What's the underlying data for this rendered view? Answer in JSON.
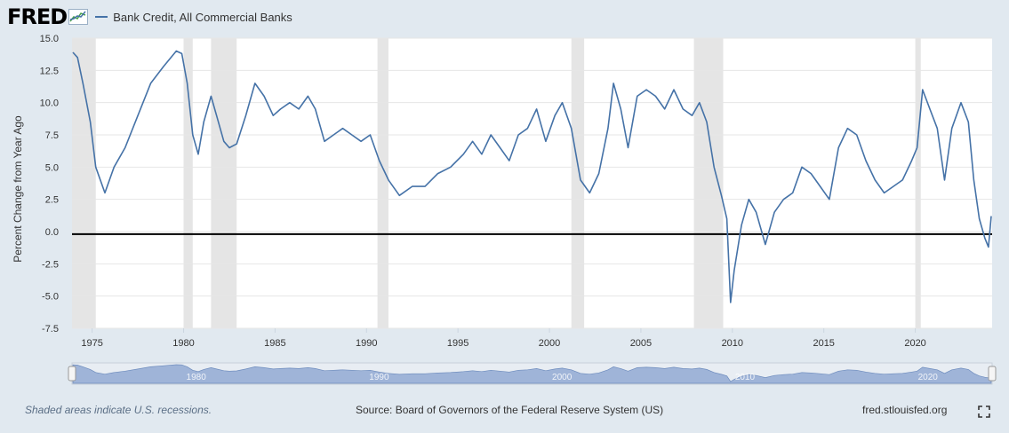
{
  "header": {
    "logo_text": "FRED",
    "logo_icon": "fred-chart-icon"
  },
  "footer": {
    "note": "Shaded areas indicate U.S. recessions.",
    "source": "Source: Board of Governors of the Federal Reserve System (US)",
    "site": "fred.stlouisfed.org",
    "fullscreen_icon": "fullscreen-icon"
  },
  "chart_data": {
    "type": "line",
    "title": "",
    "legend": "top-left",
    "grid": true,
    "ylabel": "Percent Change from Year Ago",
    "xlabel": "",
    "ylim": [
      -7.5,
      15.0
    ],
    "xlim": [
      1973.9,
      2024.2
    ],
    "yticks": [
      "15.0",
      "12.5",
      "10.0",
      "7.5",
      "5.0",
      "2.5",
      "0.0",
      "-2.5",
      "-5.0",
      "-7.5"
    ],
    "yticks_values": [
      15.0,
      12.5,
      10.0,
      7.5,
      5.0,
      2.5,
      0.0,
      -2.5,
      -5.0,
      -7.5
    ],
    "xticks": [
      "1975",
      "1980",
      "1985",
      "1990",
      "1995",
      "2000",
      "2005",
      "2010",
      "2015",
      "2020"
    ],
    "xticks_values": [
      1975,
      1980,
      1985,
      1990,
      1995,
      2000,
      2005,
      2010,
      2015,
      2020
    ],
    "zero_line": -0.2,
    "colors": {
      "series": "#4572a7",
      "recession": "#e5e5e5",
      "navigator": "#9fb4d8"
    },
    "recessions": [
      [
        1973.9,
        1975.2
      ],
      [
        1980.0,
        1980.5
      ],
      [
        1981.5,
        1982.9
      ],
      [
        1990.6,
        1991.2
      ],
      [
        2001.2,
        2001.9
      ],
      [
        2007.9,
        2009.5
      ],
      [
        2020.0,
        2020.3
      ]
    ],
    "navigator_labels": [
      "1980",
      "1990",
      "2000",
      "2010",
      "2020"
    ],
    "navigator_labels_values": [
      1980,
      1990,
      2000,
      2010,
      2020
    ],
    "series": [
      {
        "name": "Bank Credit, All Commercial Banks",
        "x": [
          1973.95,
          1974.2,
          1974.5,
          1974.9,
          1975.2,
          1975.7,
          1976.2,
          1976.8,
          1977.5,
          1978.2,
          1978.9,
          1979.6,
          1979.9,
          1980.2,
          1980.5,
          1980.8,
          1981.1,
          1981.5,
          1981.8,
          1982.2,
          1982.5,
          1982.9,
          1983.4,
          1983.9,
          1984.4,
          1984.9,
          1985.3,
          1985.8,
          1986.3,
          1986.8,
          1987.2,
          1987.7,
          1988.2,
          1988.7,
          1989.2,
          1989.7,
          1990.2,
          1990.7,
          1991.2,
          1991.8,
          1992.5,
          1993.2,
          1993.9,
          1994.6,
          1995.3,
          1995.8,
          1996.3,
          1996.8,
          1997.3,
          1997.8,
          1998.3,
          1998.8,
          1999.3,
          1999.8,
          2000.3,
          2000.7,
          2001.2,
          2001.7,
          2002.2,
          2002.7,
          2003.2,
          2003.5,
          2003.9,
          2004.3,
          2004.8,
          2005.3,
          2005.8,
          2006.3,
          2006.8,
          2007.3,
          2007.8,
          2008.2,
          2008.6,
          2009.0,
          2009.4,
          2009.7,
          2009.9,
          2010.1,
          2010.5,
          2010.9,
          2011.3,
          2011.8,
          2012.3,
          2012.8,
          2013.3,
          2013.8,
          2014.3,
          2014.8,
          2015.3,
          2015.8,
          2016.3,
          2016.8,
          2017.3,
          2017.8,
          2018.3,
          2018.8,
          2019.3,
          2019.8,
          2020.1,
          2020.4,
          2020.8,
          2021.2,
          2021.6,
          2022.0,
          2022.5,
          2022.9,
          2023.2,
          2023.5,
          2023.8,
          2024.0,
          2024.15
        ],
        "y": [
          13.9,
          13.5,
          11.5,
          8.5,
          5.0,
          3.0,
          5.0,
          6.5,
          9.0,
          11.5,
          12.8,
          14.0,
          13.8,
          11.5,
          7.5,
          6.0,
          8.5,
          10.5,
          9.0,
          7.0,
          6.5,
          6.8,
          9.0,
          11.5,
          10.5,
          9.0,
          9.5,
          10.0,
          9.5,
          10.5,
          9.5,
          7.0,
          7.5,
          8.0,
          7.5,
          7.0,
          7.5,
          5.5,
          4.0,
          2.8,
          3.5,
          3.5,
          4.5,
          5.0,
          6.0,
          7.0,
          6.0,
          7.5,
          6.5,
          5.5,
          7.5,
          8.0,
          9.5,
          7.0,
          9.0,
          10.0,
          8.0,
          4.0,
          3.0,
          4.5,
          8.0,
          11.5,
          9.5,
          6.5,
          10.5,
          11.0,
          10.5,
          9.5,
          11.0,
          9.5,
          9.0,
          10.0,
          8.5,
          5.0,
          2.8,
          1.0,
          -5.5,
          -3.0,
          0.5,
          2.5,
          1.5,
          -1.0,
          1.5,
          2.5,
          3.0,
          5.0,
          4.5,
          3.5,
          2.5,
          6.5,
          8.0,
          7.5,
          5.5,
          4.0,
          3.0,
          3.5,
          4.0,
          5.5,
          6.5,
          11.0,
          9.5,
          8.0,
          4.0,
          8.0,
          10.0,
          8.5,
          4.0,
          1.0,
          -0.5,
          -1.2,
          1.2
        ]
      }
    ]
  }
}
